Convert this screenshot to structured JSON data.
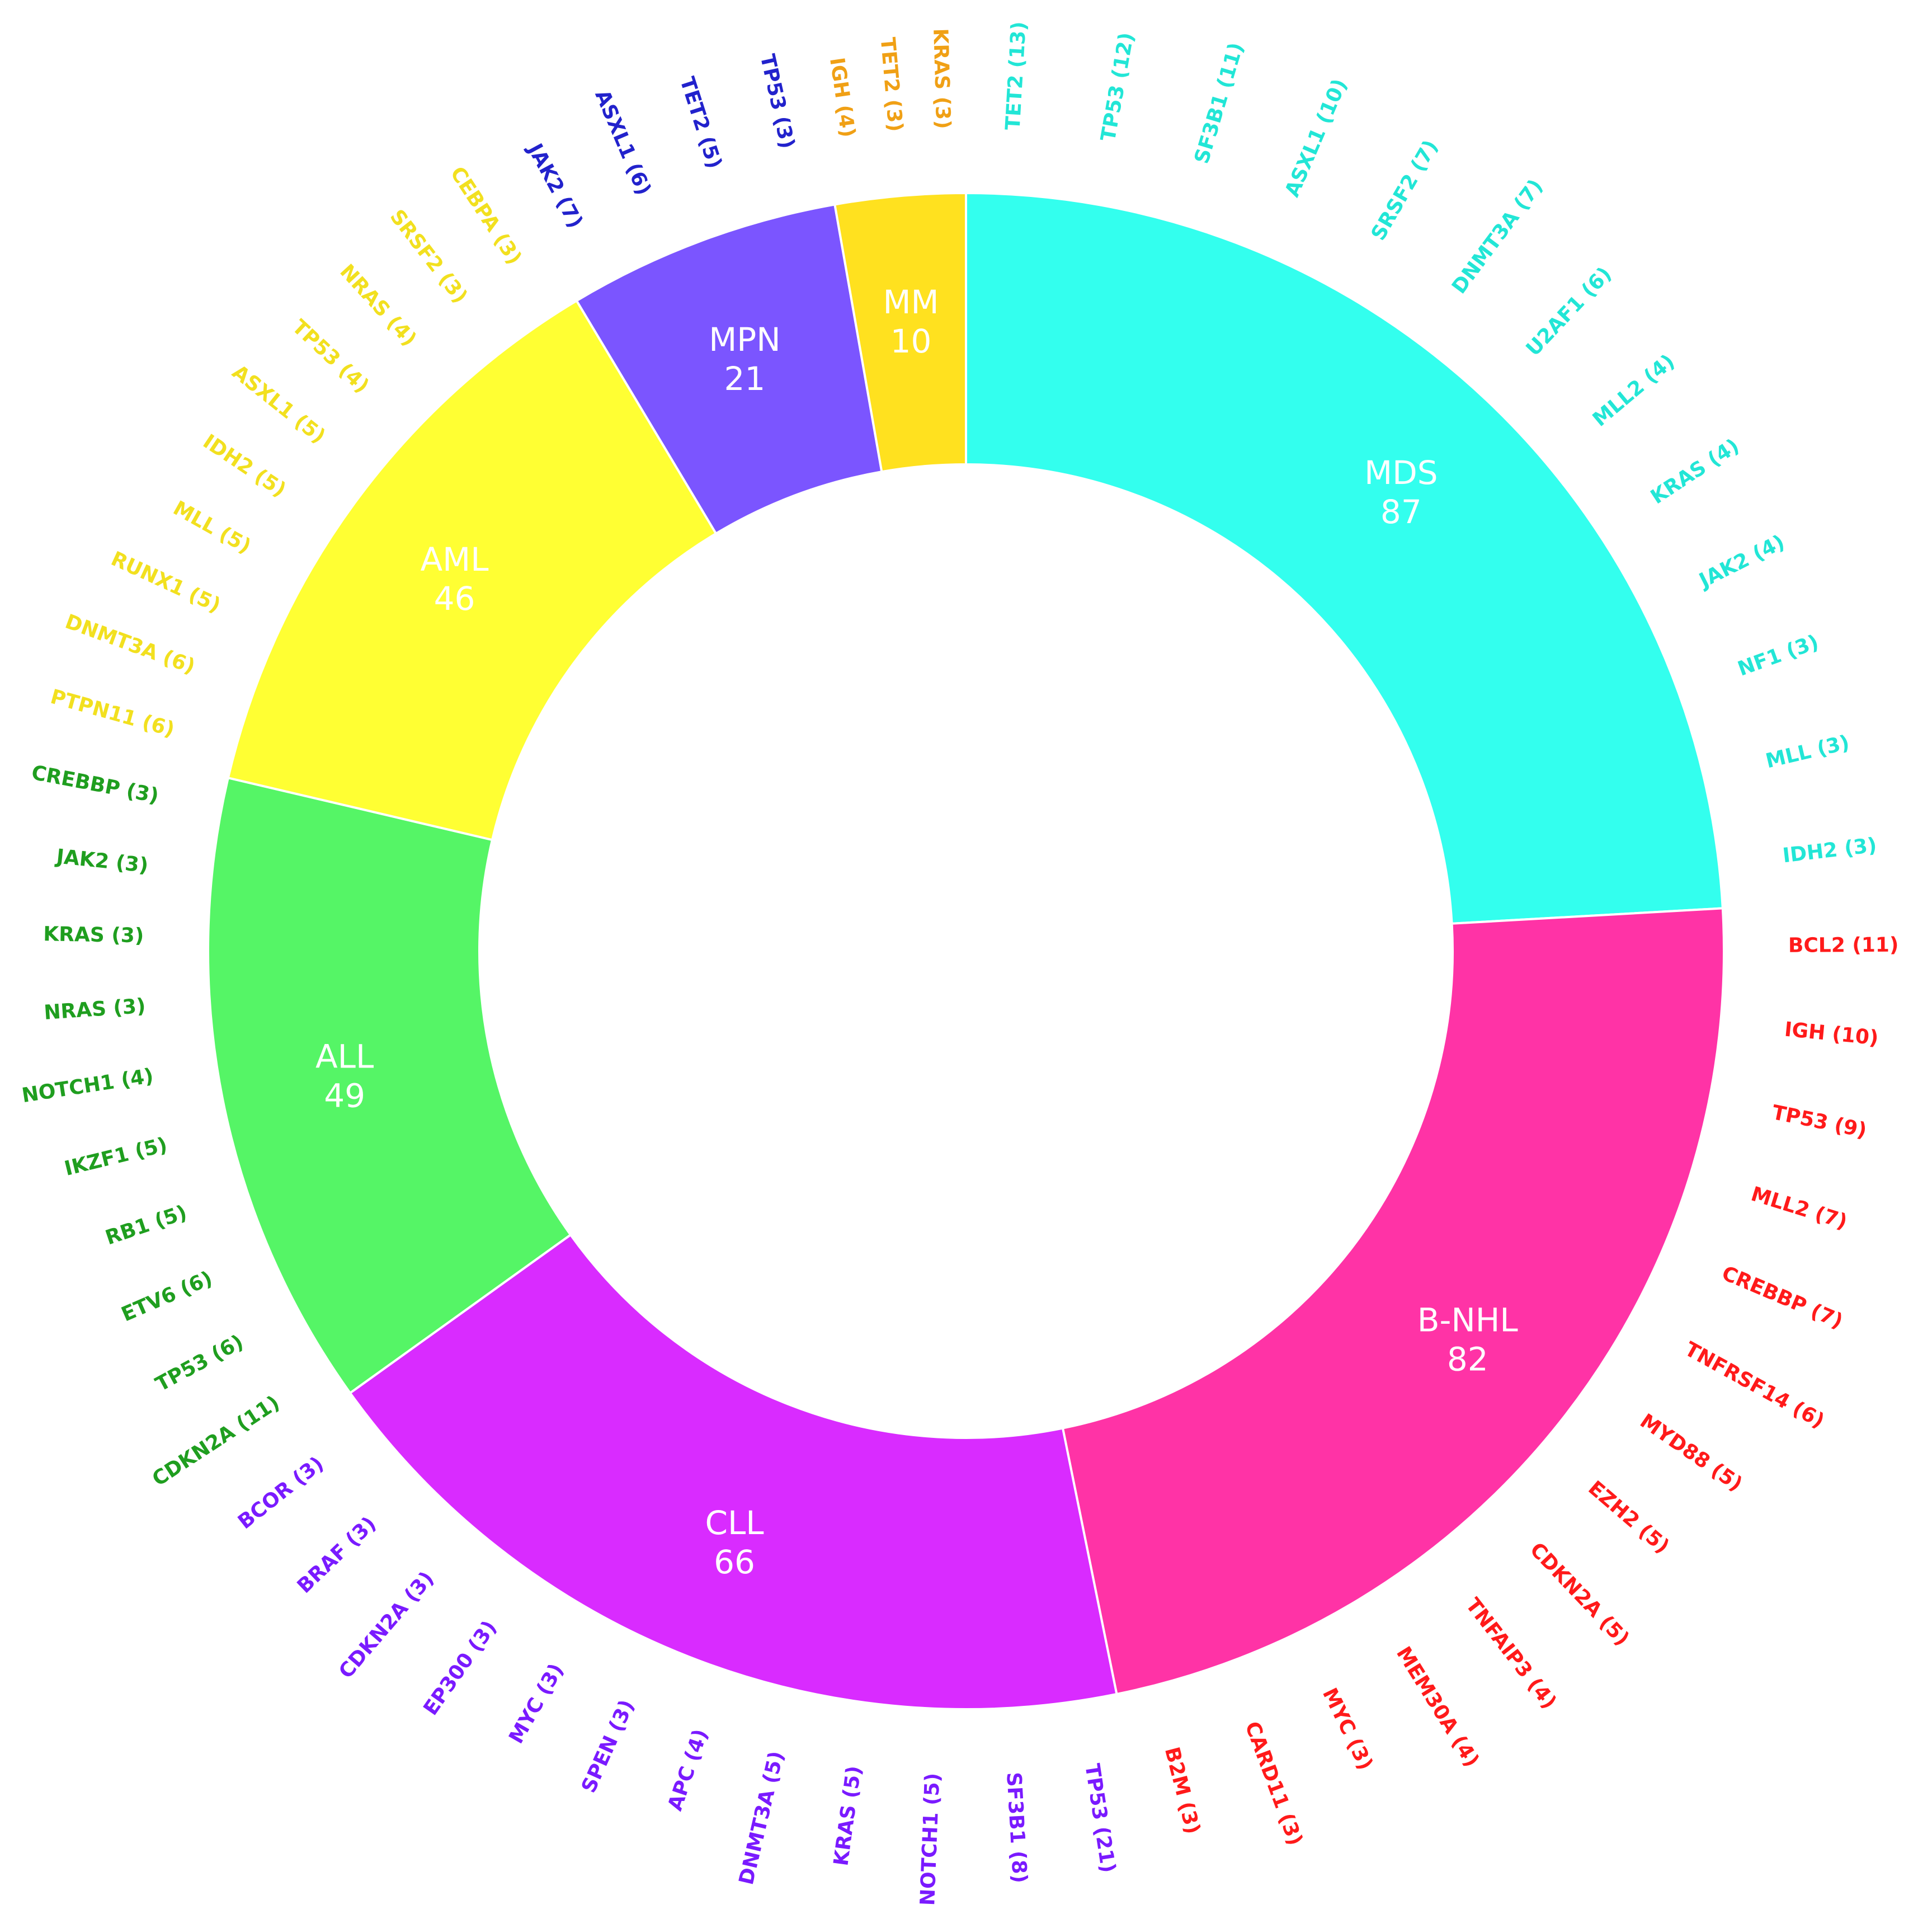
{
  "chart_data": {
    "type": "pie",
    "title": "",
    "segments": [
      {
        "name": "MDS",
        "value": 87,
        "color": "#33FFEE",
        "text_color": "#22E6D6",
        "genes": [
          {
            "label": "TET2 (13)"
          },
          {
            "label": "TP53 (12)"
          },
          {
            "label": "SF3B1 (11)"
          },
          {
            "label": "ASXL1 (10)"
          },
          {
            "label": "SRSF2 (7)"
          },
          {
            "label": "DNMT3A (7)"
          },
          {
            "label": "U2AF1 (6)"
          },
          {
            "label": "MLL2 (4)"
          },
          {
            "label": "KRAS (4)"
          },
          {
            "label": "JAK2 (4)"
          },
          {
            "label": "NF1 (3)"
          },
          {
            "label": "MLL (3)"
          },
          {
            "label": "IDH2 (3)"
          }
        ]
      },
      {
        "name": "B-NHL",
        "value": 82,
        "color": "#FF33A6",
        "text_color": "#FF1A1A",
        "genes": [
          {
            "label": "BCL2 (11)"
          },
          {
            "label": "IGH (10)"
          },
          {
            "label": "TP53 (9)"
          },
          {
            "label": "MLL2 (7)"
          },
          {
            "label": "CREBBP (7)"
          },
          {
            "label": "TNFRSF14 (6)"
          },
          {
            "label": "MYD88 (5)"
          },
          {
            "label": "EZH2 (5)"
          },
          {
            "label": "CDKN2A (5)"
          },
          {
            "label": "TNFAIP3 (4)"
          },
          {
            "label": "MEM30A (4)"
          },
          {
            "label": "MYC (3)"
          },
          {
            "label": "CARD11 (3)"
          },
          {
            "label": "B2M (3)"
          }
        ]
      },
      {
        "name": "CLL",
        "value": 66,
        "color": "#D92BFF",
        "text_color": "#7A1AFF",
        "genes": [
          {
            "label": "TP53 (21)"
          },
          {
            "label": "SF3B1 (8)"
          },
          {
            "label": "NOTCH1 (5)"
          },
          {
            "label": "KRAS (5)"
          },
          {
            "label": "DNMT3A (5)"
          },
          {
            "label": "APC (4)"
          },
          {
            "label": "SPEN (3)"
          },
          {
            "label": "MYC (3)"
          },
          {
            "label": "EP300 (3)"
          },
          {
            "label": "CDKN2A (3)"
          },
          {
            "label": "BRAF (3)"
          },
          {
            "label": "BCOR (3)"
          }
        ]
      },
      {
        "name": "ALL",
        "value": 49,
        "color": "#55F566",
        "text_color": "#1F9E1F",
        "genes": [
          {
            "label": "CDKN2A (11)"
          },
          {
            "label": "TP53 (6)"
          },
          {
            "label": "ETV6 (6)"
          },
          {
            "label": "RB1 (5)"
          },
          {
            "label": "IKZF1 (5)"
          },
          {
            "label": "NOTCH1 (4)"
          },
          {
            "label": "NRAS (3)"
          },
          {
            "label": "KRAS (3)"
          },
          {
            "label": "JAK2 (3)"
          },
          {
            "label": "CREBBP (3)"
          }
        ]
      },
      {
        "name": "AML",
        "value": 46,
        "color": "#FFFF33",
        "text_color": "#F2E01F",
        "genes": [
          {
            "label": "PTPN11 (6)"
          },
          {
            "label": "DNMT3A (6)"
          },
          {
            "label": "RUNX1 (5)"
          },
          {
            "label": "MLL (5)"
          },
          {
            "label": "IDH2 (5)"
          },
          {
            "label": "ASXL1 (5)"
          },
          {
            "label": "TP53 (4)"
          },
          {
            "label": "NRAS (4)"
          },
          {
            "label": "SRSF2 (3)"
          },
          {
            "label": "CEBPA (3)"
          }
        ]
      },
      {
        "name": "MPN",
        "value": 21,
        "color": "#7B55FF",
        "text_color": "#2222CC",
        "genes": [
          {
            "label": "JAK2 (7)"
          },
          {
            "label": "ASXL1 (6)"
          },
          {
            "label": "TET2 (5)"
          },
          {
            "label": "TP53 (3)"
          }
        ]
      },
      {
        "name": "MM",
        "value": 10,
        "color": "#FFE11F",
        "text_color": "#F0A015",
        "genes": [
          {
            "label": "IGH (4)"
          },
          {
            "label": "TET2 (3)"
          },
          {
            "label": "KRAS (3)"
          }
        ]
      }
    ]
  }
}
